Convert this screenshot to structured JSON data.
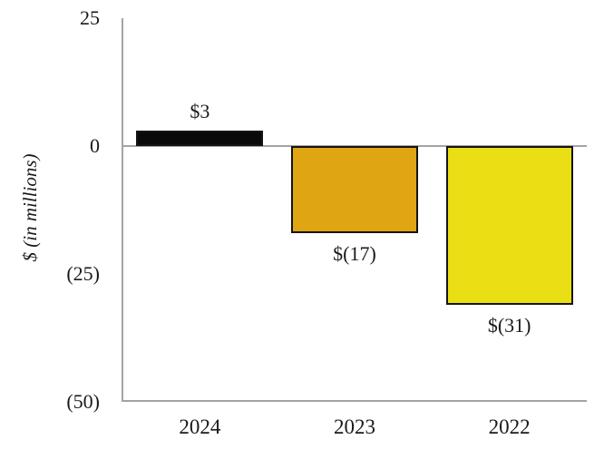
{
  "chart_data": {
    "type": "bar",
    "title": "",
    "xlabel": "",
    "ylabel": "$ (in millions)",
    "categories": [
      "2024",
      "2023",
      "2022"
    ],
    "values": [
      3,
      -17,
      -31
    ],
    "data_labels": [
      "$3",
      "$(17)",
      "$(31)"
    ],
    "bar_colors": [
      "#0a0a0a",
      "#e0a513",
      "#eade14"
    ],
    "bar_border_color": "#141414",
    "axis_color": "#a3a3a3",
    "label_color": "#1a1a1a",
    "ylim": [
      -50,
      25
    ],
    "yticks": [
      {
        "value": 25,
        "label": "25"
      },
      {
        "value": 0,
        "label": "0"
      },
      {
        "value": -25,
        "label": "(25)"
      },
      {
        "value": -50,
        "label": "(50)"
      }
    ],
    "grid": false,
    "legend": false,
    "zero_baseline": true
  }
}
